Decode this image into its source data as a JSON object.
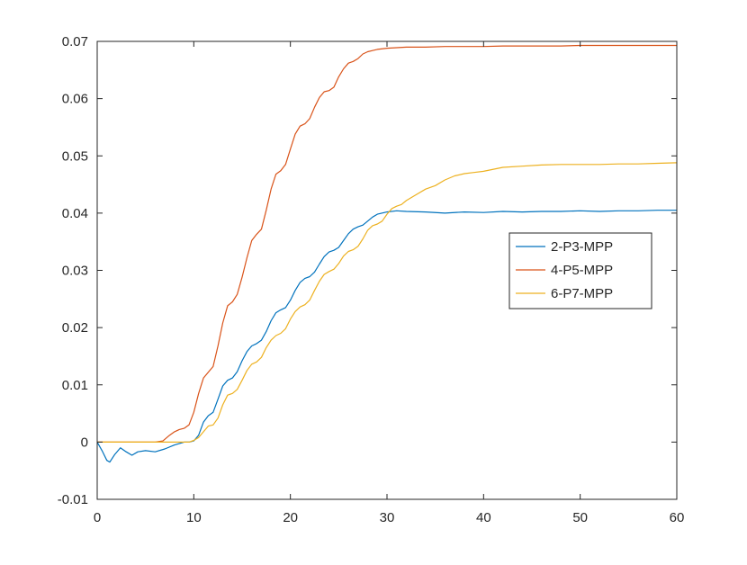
{
  "chart_data": {
    "type": "line",
    "title": "",
    "xlabel": "",
    "ylabel": "",
    "xlim": [
      0,
      60
    ],
    "ylim": [
      -0.01,
      0.07
    ],
    "xticks": [
      "0",
      "10",
      "20",
      "30",
      "40",
      "50",
      "60"
    ],
    "yticks": [
      "-0.01",
      "0",
      "0.01",
      "0.02",
      "0.03",
      "0.04",
      "0.05",
      "0.06",
      "0.07"
    ],
    "grid": false,
    "legend_position": "right",
    "series": [
      {
        "name": "2-P3-MPP",
        "color": "#0072BD",
        "x": [
          0,
          0.5,
          1,
          1.3,
          1.8,
          2.4,
          3,
          3.6,
          4.2,
          5,
          6,
          7,
          8,
          9,
          9.5,
          10,
          10.5,
          11,
          11.5,
          12,
          12.5,
          13,
          13.5,
          14,
          14.5,
          15,
          15.5,
          16,
          16.5,
          17,
          17.5,
          18,
          18.5,
          19,
          19.5,
          20,
          20.5,
          21,
          21.5,
          22,
          22.5,
          23,
          23.5,
          24,
          24.5,
          25,
          25.5,
          26,
          26.5,
          27,
          27.5,
          28,
          28.5,
          29,
          30,
          31,
          32,
          34,
          36,
          38,
          40,
          42,
          44,
          46,
          48,
          50,
          52,
          54,
          56,
          58,
          60
        ],
        "y": [
          0,
          -0.0015,
          -0.0032,
          -0.0035,
          -0.0022,
          -0.001,
          -0.0017,
          -0.0023,
          -0.0017,
          -0.0015,
          -0.0017,
          -0.0012,
          -0.0005,
          0,
          0,
          0.0002,
          0.0012,
          0.0035,
          0.0046,
          0.0052,
          0.0075,
          0.0098,
          0.0108,
          0.0112,
          0.0123,
          0.0142,
          0.0158,
          0.0168,
          0.0172,
          0.0178,
          0.0193,
          0.0212,
          0.0226,
          0.0231,
          0.0235,
          0.0248,
          0.0265,
          0.0279,
          0.0286,
          0.0289,
          0.0297,
          0.0311,
          0.0324,
          0.0332,
          0.0335,
          0.034,
          0.0352,
          0.0364,
          0.0372,
          0.0376,
          0.0379,
          0.0386,
          0.0393,
          0.0398,
          0.0402,
          0.0404,
          0.0403,
          0.0402,
          0.04,
          0.0402,
          0.0401,
          0.0403,
          0.0402,
          0.0403,
          0.0403,
          0.0404,
          0.0403,
          0.0404,
          0.0404,
          0.0405,
          0.0405
        ]
      },
      {
        "name": "4-P5-MPP",
        "color": "#D95319",
        "x": [
          0,
          2,
          4,
          6,
          6.8,
          7.5,
          8,
          8.5,
          9,
          9.5,
          10,
          10.5,
          11,
          11.5,
          12,
          12.5,
          13,
          13.5,
          14,
          14.5,
          15,
          15.5,
          16,
          16.5,
          17,
          17.5,
          18,
          18.5,
          19,
          19.5,
          20,
          20.5,
          21,
          21.5,
          22,
          22.5,
          23,
          23.5,
          24,
          24.5,
          25,
          25.5,
          26,
          26.5,
          27,
          27.5,
          28,
          28.5,
          29,
          30,
          31,
          32,
          33,
          34,
          36,
          38,
          40,
          42,
          44,
          46,
          48,
          50,
          52,
          54,
          56,
          58,
          60
        ],
        "y": [
          0,
          0,
          0,
          0,
          0.0002,
          0.0012,
          0.0018,
          0.0022,
          0.0024,
          0.003,
          0.0052,
          0.0085,
          0.0112,
          0.0122,
          0.0132,
          0.0168,
          0.0208,
          0.0238,
          0.0245,
          0.0258,
          0.0288,
          0.0322,
          0.0352,
          0.0363,
          0.0372,
          0.0405,
          0.0442,
          0.0468,
          0.0474,
          0.0485,
          0.0512,
          0.0538,
          0.0552,
          0.0556,
          0.0565,
          0.0585,
          0.0602,
          0.0612,
          0.0614,
          0.062,
          0.0638,
          0.0652,
          0.0662,
          0.0665,
          0.067,
          0.0678,
          0.0682,
          0.0684,
          0.0686,
          0.0688,
          0.0689,
          0.069,
          0.069,
          0.069,
          0.0691,
          0.0691,
          0.0691,
          0.0692,
          0.0692,
          0.0692,
          0.0692,
          0.0693,
          0.0693,
          0.0693,
          0.0693,
          0.0693,
          0.0693
        ]
      },
      {
        "name": "6-P7-MPP",
        "color": "#EDB120",
        "x": [
          0,
          2,
          4,
          6,
          8,
          9,
          9.5,
          10,
          10.5,
          11,
          11.5,
          12,
          12.5,
          13,
          13.5,
          14,
          14.5,
          15,
          15.5,
          16,
          16.5,
          17,
          17.5,
          18,
          18.5,
          19,
          19.5,
          20,
          20.5,
          21,
          21.5,
          22,
          22.5,
          23,
          23.5,
          24,
          24.5,
          25,
          25.5,
          26,
          26.5,
          27,
          27.5,
          28,
          28.5,
          29,
          29.5,
          30,
          30.5,
          31,
          31.5,
          32,
          33,
          34,
          35,
          36,
          37,
          38,
          39,
          40,
          42,
          44,
          46,
          48,
          50,
          52,
          54,
          56,
          58,
          60
        ],
        "y": [
          0,
          0,
          0,
          0,
          0,
          0,
          0,
          0.0003,
          0.0008,
          0.0018,
          0.0028,
          0.003,
          0.0042,
          0.0065,
          0.0082,
          0.0085,
          0.0092,
          0.0108,
          0.0125,
          0.0136,
          0.014,
          0.0148,
          0.0165,
          0.0178,
          0.0186,
          0.019,
          0.0198,
          0.0215,
          0.0228,
          0.0236,
          0.024,
          0.0248,
          0.0265,
          0.0281,
          0.0293,
          0.0298,
          0.0302,
          0.0312,
          0.0325,
          0.0333,
          0.0336,
          0.0342,
          0.0355,
          0.037,
          0.0378,
          0.0381,
          0.0386,
          0.0398,
          0.0408,
          0.0412,
          0.0415,
          0.0422,
          0.0432,
          0.0442,
          0.0448,
          0.0458,
          0.0465,
          0.0469,
          0.0471,
          0.0473,
          0.048,
          0.0482,
          0.0484,
          0.0485,
          0.0485,
          0.0485,
          0.0486,
          0.0486,
          0.0487,
          0.0488
        ]
      }
    ]
  }
}
